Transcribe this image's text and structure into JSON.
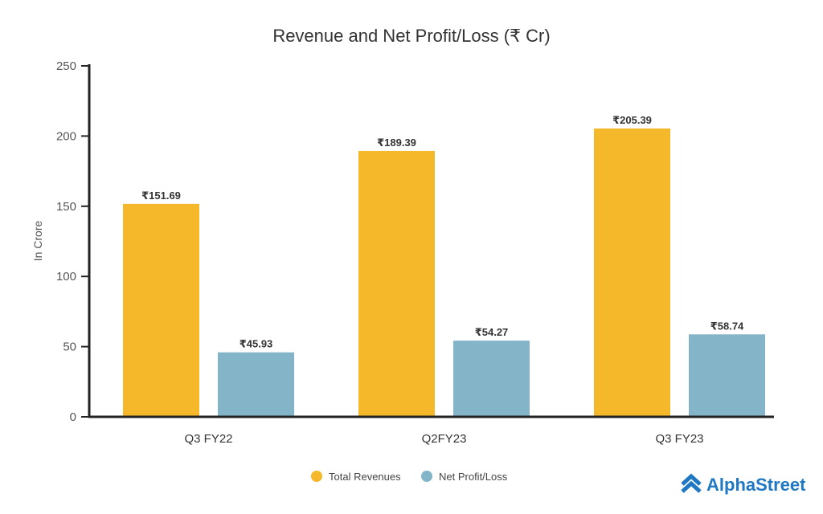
{
  "chart_data": {
    "type": "bar",
    "title": "Revenue and Net Profit/Loss (₹ Cr)",
    "xlabel": "",
    "ylabel": "In Crore",
    "ylim": [
      0,
      250
    ],
    "yticks": [
      0,
      50,
      100,
      150,
      200,
      250
    ],
    "categories": [
      "Q3 FY22",
      "Q2FY23",
      "Q3 FY23"
    ],
    "series": [
      {
        "name": "Total Revenues",
        "color": "#f5b82a",
        "values": [
          151.69,
          189.39,
          205.39
        ],
        "labels": [
          "₹151.69",
          "₹189.39",
          "₹205.39"
        ]
      },
      {
        "name": "Net Profit/Loss",
        "color": "#84b4c8",
        "values": [
          45.93,
          54.27,
          58.74
        ],
        "labels": [
          "₹45.93",
          "₹54.27",
          "₹58.74"
        ]
      }
    ],
    "legend": "bottom-center",
    "grid": false
  },
  "branding": {
    "logo_text": "AlphaStreet",
    "logo_color": "#1f78c1"
  }
}
